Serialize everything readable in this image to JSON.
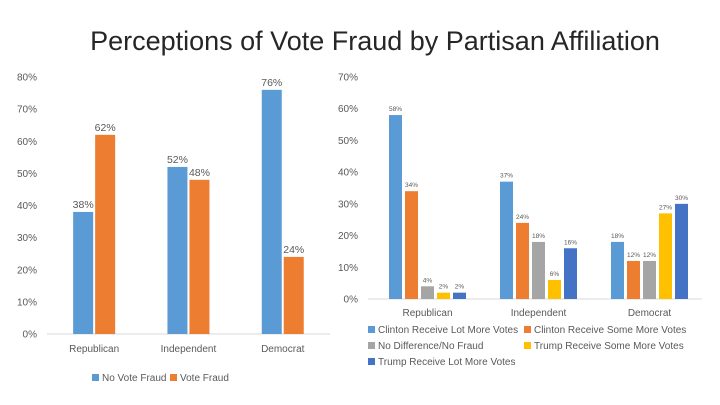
{
  "page": {
    "title": "Perceptions of Vote Fraud by Partisan Affiliation"
  },
  "chart_data": [
    {
      "type": "bar",
      "categories": [
        "Republican",
        "Independent",
        "Democrat"
      ],
      "series": [
        {
          "name": "No Vote Fraud",
          "values": [
            38,
            52,
            76
          ],
          "color": "#5B9BD5"
        },
        {
          "name": "Vote Fraud",
          "values": [
            62,
            48,
            24
          ],
          "color": "#ED7D31"
        }
      ],
      "ylim": [
        0,
        80
      ],
      "yticks": [
        0,
        10,
        20,
        30,
        40,
        50,
        60,
        70,
        80
      ],
      "tick_suffix": "%",
      "value_suffix": "%",
      "grid": false,
      "legend": "bottom"
    },
    {
      "type": "bar",
      "categories": [
        "Republican",
        "Independent",
        "Democrat"
      ],
      "series": [
        {
          "name": "Clinton Receive Lot More Votes",
          "values": [
            58,
            37,
            18
          ],
          "color": "#5B9BD5"
        },
        {
          "name": "Clinton Receive Some More Votes",
          "values": [
            34,
            24,
            12
          ],
          "color": "#ED7D31"
        },
        {
          "name": "No Difference/No Fraud",
          "values": [
            4,
            18,
            12
          ],
          "color": "#A5A5A5"
        },
        {
          "name": "Trump Receive Some More Votes",
          "values": [
            2,
            6,
            27
          ],
          "color": "#FFC000"
        },
        {
          "name": "Trump Receive Lot More Votes",
          "values": [
            2,
            16,
            30
          ],
          "color": "#4472C4"
        }
      ],
      "ylim": [
        0,
        70
      ],
      "yticks": [
        0,
        10,
        20,
        30,
        40,
        50,
        60,
        70
      ],
      "tick_suffix": "%",
      "value_suffix": "%",
      "grid": false,
      "legend": "bottom"
    }
  ]
}
